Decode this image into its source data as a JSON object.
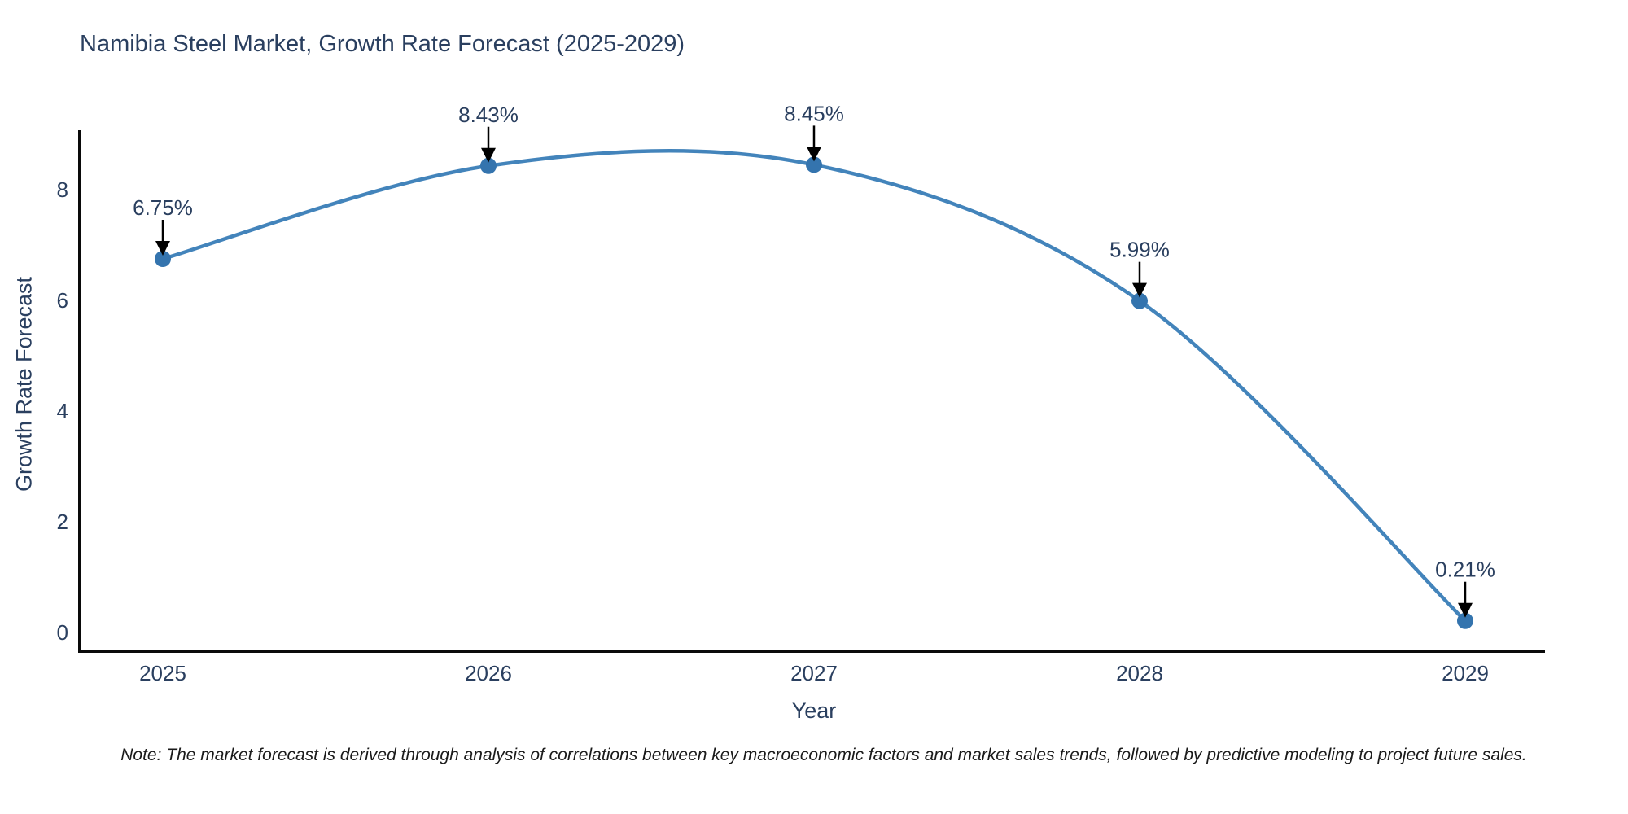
{
  "chart_data": {
    "type": "line",
    "title": "Namibia Steel Market, Growth Rate Forecast (2025-2029)",
    "xlabel": "Year",
    "ylabel": "Growth Rate Forecast",
    "categories": [
      "2025",
      "2026",
      "2027",
      "2028",
      "2029"
    ],
    "values": [
      6.75,
      8.43,
      8.45,
      5.99,
      0.21
    ],
    "point_labels": [
      "6.75%",
      "8.43%",
      "8.45%",
      "5.99%",
      "0.21%"
    ],
    "yticks": [
      0,
      2,
      4,
      6,
      8
    ],
    "ylim": [
      -0.34,
      9.08
    ],
    "grid": false,
    "legend": "none",
    "line_shape": "spline",
    "marker": "circle",
    "annotation_style": "value label with black down arrow to each point",
    "colors": {
      "line": "#4384bb",
      "marker": "#3474ae",
      "axis": "#0a0a0a",
      "text": "#2a3f5f",
      "annotation_text": "#2a3f5f",
      "annotation_arrow": "#000000",
      "note_text": "#1a1a1a",
      "background": "#ffffff"
    },
    "note": "Note: The market forecast is derived through analysis of correlations between key macroeconomic factors and market sales trends, followed by predictive modeling to project future sales."
  }
}
